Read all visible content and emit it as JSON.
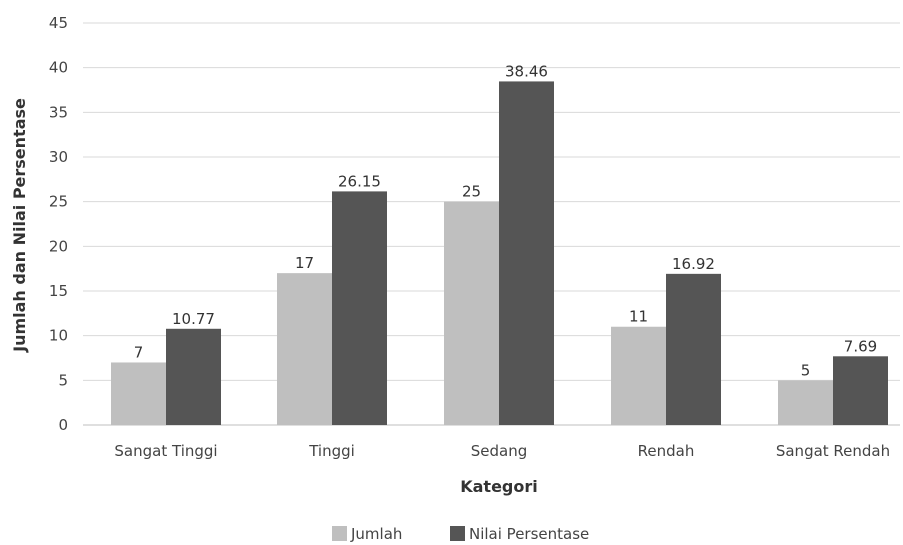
{
  "chart_data": {
    "type": "bar",
    "title": "",
    "xlabel": "Kategori",
    "ylabel": "Jumlah dan Nilai Persentase",
    "ylim": [
      0,
      45
    ],
    "yticks": [
      0,
      5,
      10,
      15,
      20,
      25,
      30,
      35,
      40,
      45
    ],
    "grid": true,
    "legend_position": "bottom",
    "categories": [
      "Sangat Tinggi",
      "Tinggi",
      "Sedang",
      "Rendah",
      "Sangat Rendah"
    ],
    "series": [
      {
        "name": "Jumlah",
        "color": "#bfbfbf",
        "values": [
          7,
          17,
          25,
          11,
          5
        ],
        "labels": [
          "7",
          "17",
          "25",
          "11",
          "5"
        ]
      },
      {
        "name": "Nilai Persentase",
        "color": "#555555",
        "values": [
          10.77,
          26.15,
          38.46,
          16.92,
          7.69
        ],
        "labels": [
          "10.77",
          "26.15",
          "38.46",
          "16.92",
          "7.69"
        ]
      }
    ]
  }
}
